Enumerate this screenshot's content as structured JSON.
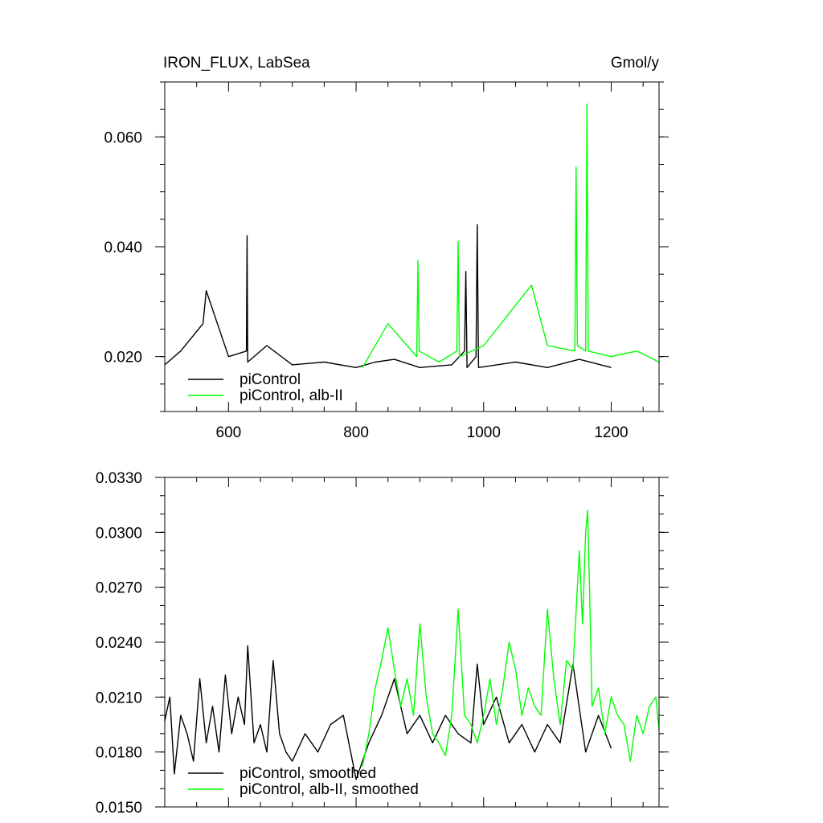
{
  "title_left": "IRON_FLUX, LabSea",
  "title_right": "Gmol/y",
  "colors": {
    "piControl": "#000000",
    "alb_II": "#00ff00"
  },
  "chart_data": [
    {
      "type": "line",
      "title": "IRON_FLUX, LabSea",
      "units": "Gmol/y",
      "xlim": [
        500,
        1275
      ],
      "ylim": [
        0.01,
        0.07
      ],
      "xticks": [
        600,
        800,
        1000,
        1200
      ],
      "xtick_labels": [
        "600",
        "800",
        "1000",
        "1200"
      ],
      "yticks": [
        0.02,
        0.04,
        0.06
      ],
      "ytick_labels": [
        "0.020",
        "0.040",
        "0.060"
      ],
      "legend": "bottom-left",
      "series": [
        {
          "name": "piControl",
          "color": "#000000",
          "x": [
            500,
            525,
            560,
            565,
            600,
            628,
            629,
            630,
            660,
            700,
            750,
            800,
            830,
            860,
            900,
            950,
            970,
            972,
            974,
            988,
            990,
            992,
            1050,
            1100,
            1150,
            1200
          ],
          "y": [
            0.0185,
            0.021,
            0.026,
            0.032,
            0.02,
            0.021,
            0.042,
            0.019,
            0.022,
            0.0185,
            0.019,
            0.018,
            0.019,
            0.0195,
            0.018,
            0.0185,
            0.021,
            0.0355,
            0.018,
            0.02,
            0.044,
            0.018,
            0.019,
            0.018,
            0.0195,
            0.018
          ]
        },
        {
          "name": "piControl, alb-II",
          "color": "#00ff00",
          "x": [
            810,
            850,
            895,
            897,
            899,
            930,
            958,
            960,
            962,
            1000,
            1075,
            1100,
            1143,
            1145,
            1147,
            1160,
            1162,
            1164,
            1200,
            1240,
            1275
          ],
          "y": [
            0.018,
            0.026,
            0.02,
            0.0375,
            0.021,
            0.019,
            0.021,
            0.041,
            0.02,
            0.022,
            0.033,
            0.022,
            0.021,
            0.0545,
            0.022,
            0.021,
            0.066,
            0.021,
            0.02,
            0.021,
            0.019
          ]
        }
      ]
    },
    {
      "type": "line",
      "title": "",
      "xlim": [
        500,
        1275
      ],
      "ylim": [
        0.015,
        0.033
      ],
      "xticks": [
        600,
        800,
        1000,
        1200
      ],
      "yticks": [
        0.015,
        0.018,
        0.021,
        0.024,
        0.027,
        0.03,
        0.033
      ],
      "ytick_labels": [
        "0.0150",
        "0.0180",
        "0.0210",
        "0.0240",
        "0.0270",
        "0.0300",
        "0.0330"
      ],
      "legend": "bottom-left",
      "series": [
        {
          "name": "piControl, smoothed",
          "color": "#000000",
          "x": [
            500,
            508,
            515,
            525,
            535,
            545,
            555,
            565,
            575,
            585,
            595,
            605,
            615,
            625,
            630,
            640,
            650,
            660,
            670,
            680,
            690,
            700,
            720,
            740,
            760,
            780,
            800,
            820,
            840,
            860,
            880,
            900,
            920,
            940,
            960,
            980,
            990,
            1000,
            1020,
            1040,
            1060,
            1080,
            1100,
            1120,
            1140,
            1160,
            1180,
            1200
          ],
          "y": [
            0.0197,
            0.021,
            0.0168,
            0.02,
            0.019,
            0.0175,
            0.022,
            0.0185,
            0.0205,
            0.018,
            0.0222,
            0.019,
            0.021,
            0.0195,
            0.0238,
            0.0185,
            0.0195,
            0.018,
            0.023,
            0.019,
            0.018,
            0.0175,
            0.019,
            0.018,
            0.0195,
            0.02,
            0.0165,
            0.0185,
            0.02,
            0.022,
            0.019,
            0.02,
            0.0185,
            0.02,
            0.019,
            0.0185,
            0.0228,
            0.0195,
            0.021,
            0.0185,
            0.0195,
            0.018,
            0.0195,
            0.0185,
            0.0228,
            0.018,
            0.02,
            0.0182
          ]
        },
        {
          "name": "piControl, alb-II, smoothed",
          "color": "#00ff00",
          "x": [
            810,
            820,
            830,
            840,
            850,
            860,
            870,
            880,
            890,
            900,
            910,
            920,
            930,
            940,
            950,
            960,
            970,
            980,
            990,
            1000,
            1010,
            1020,
            1030,
            1040,
            1050,
            1060,
            1070,
            1080,
            1090,
            1100,
            1110,
            1120,
            1130,
            1140,
            1150,
            1155,
            1160,
            1163,
            1166,
            1170,
            1180,
            1190,
            1200,
            1210,
            1220,
            1230,
            1240,
            1250,
            1260,
            1270,
            1275
          ],
          "y": [
            0.0172,
            0.019,
            0.0215,
            0.023,
            0.0248,
            0.0225,
            0.0205,
            0.022,
            0.02,
            0.025,
            0.021,
            0.019,
            0.0185,
            0.0178,
            0.02,
            0.0258,
            0.02,
            0.0195,
            0.0185,
            0.02,
            0.022,
            0.0195,
            0.0215,
            0.024,
            0.0225,
            0.02,
            0.0215,
            0.0205,
            0.02,
            0.0258,
            0.022,
            0.0195,
            0.023,
            0.0225,
            0.029,
            0.025,
            0.03,
            0.0312,
            0.027,
            0.0205,
            0.0215,
            0.019,
            0.021,
            0.02,
            0.0195,
            0.0175,
            0.02,
            0.019,
            0.0205,
            0.021,
            0.0192
          ]
        }
      ]
    }
  ]
}
